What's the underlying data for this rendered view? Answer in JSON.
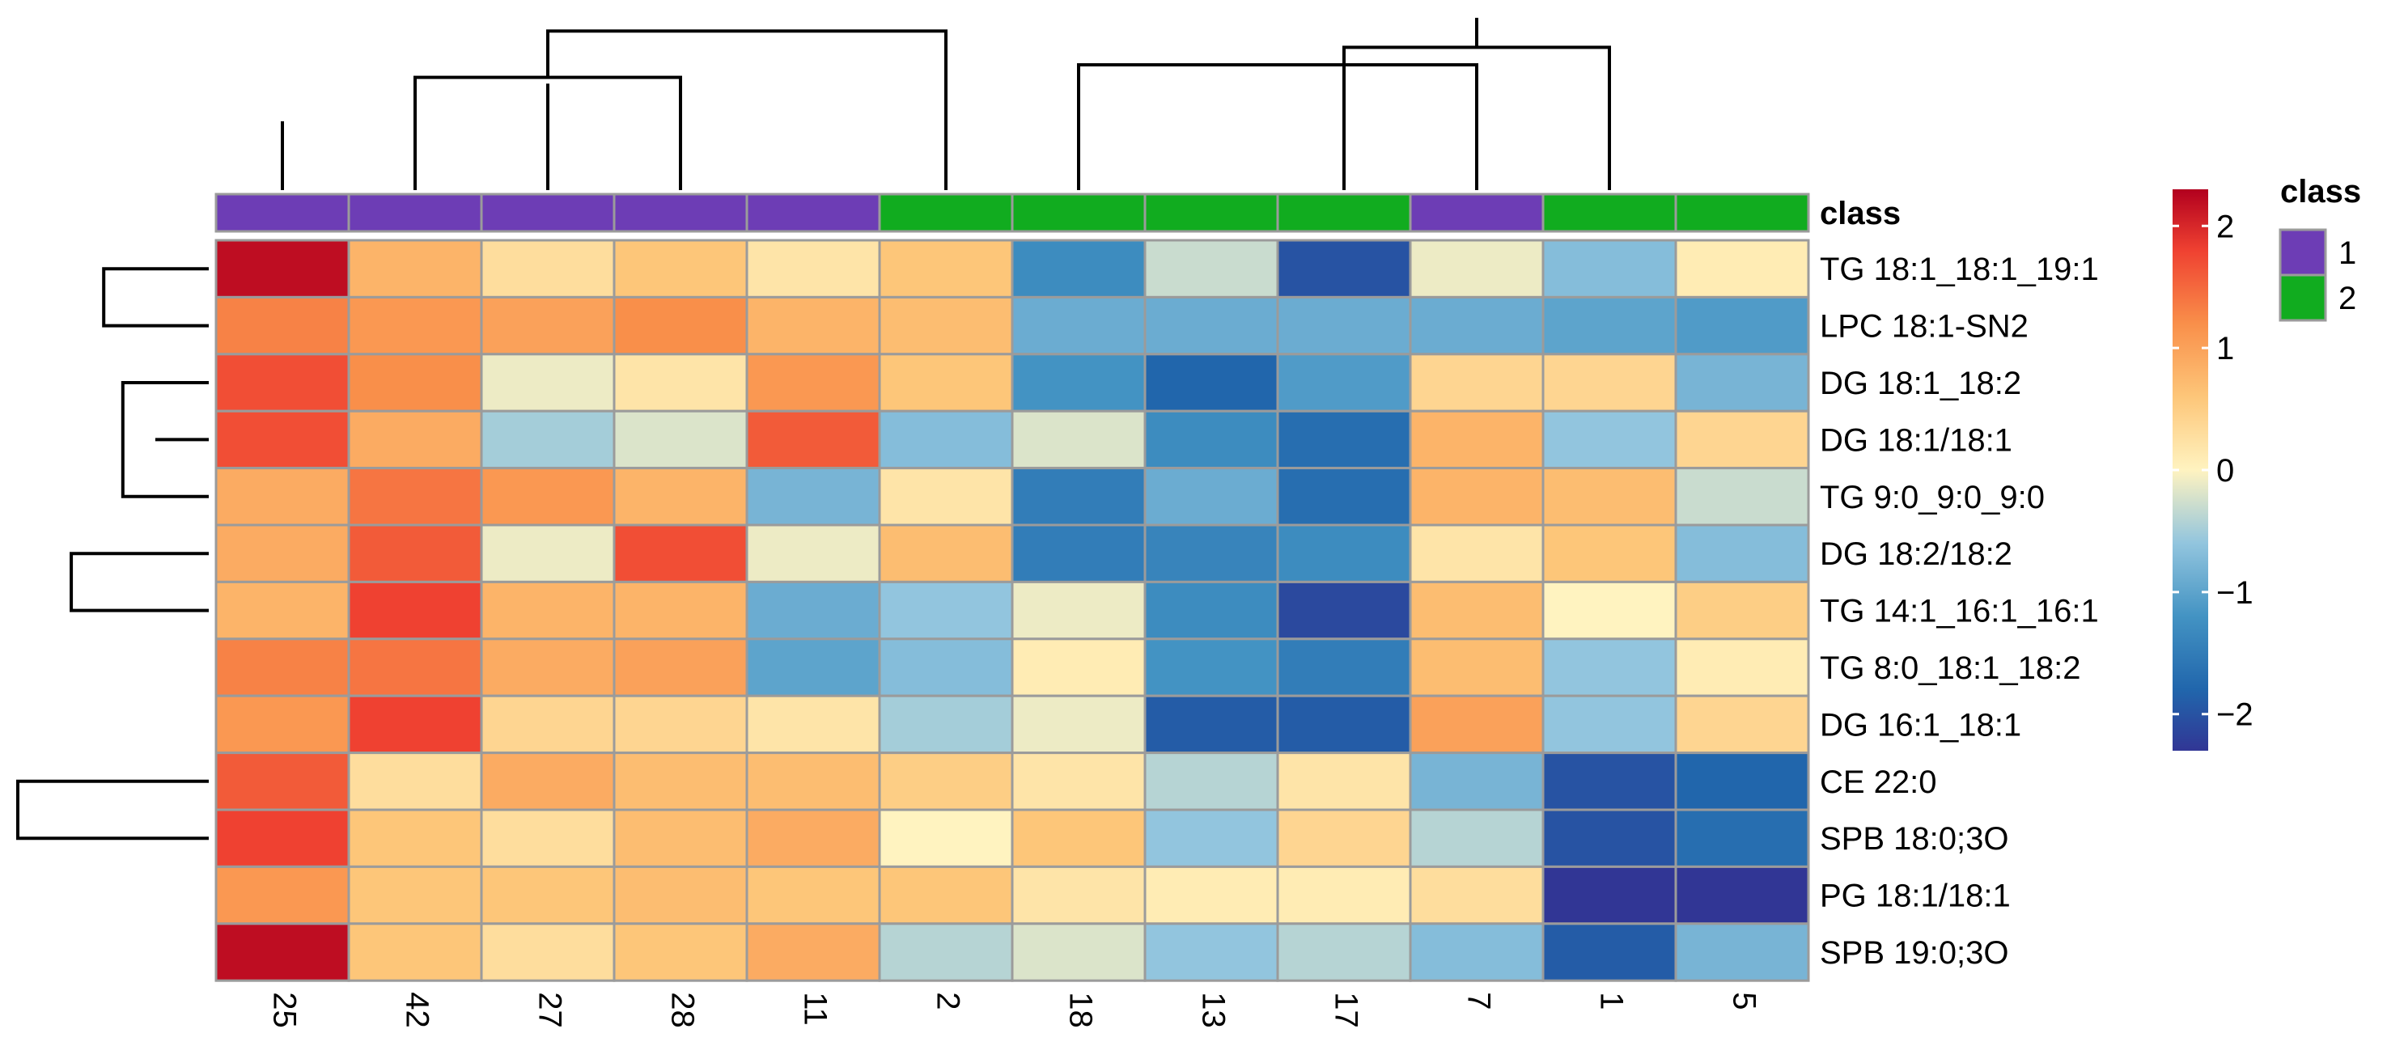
{
  "chart_data": {
    "type": "heatmap",
    "columns": [
      "25",
      "42",
      "27",
      "28",
      "11",
      "2",
      "18",
      "13",
      "17",
      "7",
      "1",
      "5"
    ],
    "column_class": [
      "1",
      "1",
      "1",
      "1",
      "1",
      "2",
      "2",
      "2",
      "2",
      "1",
      "2",
      "2"
    ],
    "rows": [
      "TG 18:1_18:1_19:1",
      "LPC 18:1-SN2",
      "DG 18:1_18:2",
      "DG 18:1/18:1",
      "TG 9:0_9:0_9:0",
      "DG 18:2/18:2",
      "TG 14:1_16:1_16:1",
      "TG 8:0_18:1_18:2",
      "DG 16:1_18:1",
      "CE 22:0",
      "SPB 18:0;3O",
      "PG 18:1/18:1",
      "SPB 19:0;3O"
    ],
    "values": [
      [
        2.2,
        0.8,
        0.3,
        0.6,
        0.2,
        0.6,
        -1.3,
        -0.3,
        -2.0,
        -0.1,
        -0.7,
        0.1
      ],
      [
        1.3,
        1.1,
        1.0,
        1.2,
        0.8,
        0.7,
        -0.9,
        -0.9,
        -0.9,
        -0.9,
        -1.0,
        -1.1
      ],
      [
        1.7,
        1.2,
        -0.1,
        0.2,
        1.1,
        0.6,
        -1.2,
        -1.8,
        -1.1,
        0.4,
        0.4,
        -0.8
      ],
      [
        1.7,
        0.9,
        -0.5,
        -0.2,
        1.6,
        -0.7,
        -0.2,
        -1.3,
        -1.7,
        0.8,
        -0.6,
        0.4
      ],
      [
        0.9,
        1.4,
        1.1,
        0.8,
        -0.8,
        0.2,
        -1.5,
        -0.9,
        -1.7,
        0.8,
        0.7,
        -0.3
      ],
      [
        0.9,
        1.6,
        -0.1,
        1.7,
        -0.1,
        0.7,
        -1.5,
        -1.4,
        -1.3,
        0.2,
        0.6,
        -0.7
      ],
      [
        0.8,
        1.8,
        0.8,
        0.8,
        -0.9,
        -0.6,
        -0.1,
        -1.3,
        -2.1,
        0.7,
        0.0,
        0.5
      ],
      [
        1.3,
        1.4,
        0.9,
        1.0,
        -1.0,
        -0.7,
        0.1,
        -1.2,
        -1.5,
        0.7,
        -0.6,
        0.1
      ],
      [
        1.1,
        1.8,
        0.4,
        0.4,
        0.2,
        -0.5,
        -0.1,
        -1.9,
        -1.9,
        1.0,
        -0.6,
        0.4
      ],
      [
        1.6,
        0.3,
        0.9,
        0.7,
        0.7,
        0.5,
        0.2,
        -0.4,
        0.2,
        -0.8,
        -2.0,
        -1.8
      ],
      [
        1.8,
        0.6,
        0.3,
        0.7,
        0.9,
        0.0,
        0.6,
        -0.6,
        0.4,
        -0.4,
        -2.0,
        -1.7
      ],
      [
        1.1,
        0.6,
        0.6,
        0.7,
        0.6,
        0.6,
        0.2,
        0.1,
        0.1,
        0.3,
        -2.3,
        -2.3
      ],
      [
        2.2,
        0.6,
        0.3,
        0.6,
        0.9,
        -0.4,
        -0.2,
        -0.6,
        -0.4,
        -0.7,
        -1.9,
        -0.8
      ]
    ],
    "annotation_title": "class",
    "legend_title": "class",
    "class_legend": [
      {
        "label": "1",
        "color": "#6d3db5"
      },
      {
        "label": "2",
        "color": "#11ac1f"
      }
    ],
    "color_scale": {
      "min": -2.3,
      "max": 2.3,
      "ticks": [
        {
          "value": 2,
          "label": "2"
        },
        {
          "value": 1,
          "label": "1"
        },
        {
          "value": 0,
          "label": "0"
        },
        {
          "value": -1,
          "label": "−1"
        },
        {
          "value": -2,
          "label": "−2"
        }
      ],
      "stops": [
        {
          "value": -2.3,
          "color": "#313695"
        },
        {
          "value": -1.8,
          "color": "#2166ac"
        },
        {
          "value": -1.2,
          "color": "#4393c3"
        },
        {
          "value": -0.6,
          "color": "#92c5de"
        },
        {
          "value": 0.0,
          "color": "#fff3c0"
        },
        {
          "value": 0.6,
          "color": "#fdc679"
        },
        {
          "value": 1.2,
          "color": "#f98f4a"
        },
        {
          "value": 1.8,
          "color": "#ef4131"
        },
        {
          "value": 2.3,
          "color": "#b2001e"
        }
      ]
    },
    "column_dendrogram": {
      "labels": [
        "25",
        "42",
        "27",
        "28",
        "11",
        "2",
        "18",
        "13",
        "17",
        "7",
        "1",
        "5"
      ],
      "merges": [
        [
          3,
          4,
          0.38
        ],
        [
          -1,
          1,
          0.55
        ],
        [
          5,
          6,
          0.62
        ],
        [
          -3,
          2,
          0.85
        ],
        [
          -2,
          -4,
          0.9
        ],
        [
          0,
          5,
          0.97
        ],
        [
          -6,
          4,
          1.27
        ],
        [
          10,
          11,
          0.55
        ],
        [
          9,
          -8,
          0.82
        ],
        [
          7,
          8,
          0.9
        ],
        [
          -7,
          -10,
          1.0
        ],
        [
          -11,
          -9,
          1.14
        ]
      ],
      "height": 1.35
    },
    "row_dendrogram": {
      "merges": [
        [
          0,
          1,
          0.32
        ],
        [
          2,
          3,
          0.3
        ],
        [
          4,
          5,
          0.3
        ],
        [
          6,
          7,
          0.2
        ],
        [
          -4,
          8,
          0.28
        ],
        [
          -3,
          -5,
          0.45
        ],
        [
          -1,
          -2,
          0.55
        ],
        [
          11,
          12,
          0.3
        ],
        [
          10,
          -8,
          0.36
        ],
        [
          9,
          -9,
          0.4
        ],
        [
          -7,
          -6,
          0.72
        ],
        [
          -11,
          -10,
          1.0
        ]
      ],
      "height": 1.0
    }
  }
}
